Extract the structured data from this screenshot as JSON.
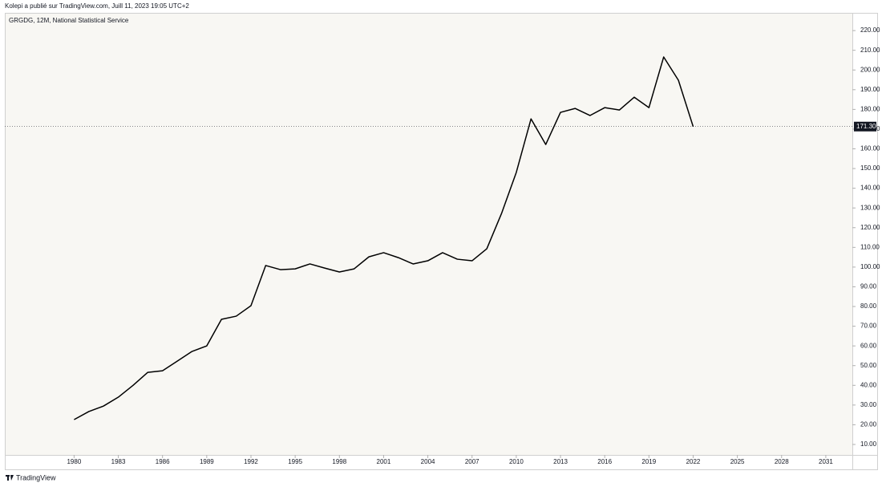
{
  "header": "Kolepi a publié sur TradingView.com, Juill 11, 2023 19:05 UTC+2",
  "footer": "TradingView",
  "chart_data": {
    "type": "line",
    "series": [
      {
        "name": "GRGDG, 12M, National Statistical Service",
        "color": "#000000",
        "values": [
          22.6,
          26.7,
          29.5,
          34,
          40,
          46.6,
          47.4,
          52.3,
          57.2,
          60,
          73.5,
          75.1,
          80.4,
          100.8,
          98.7,
          99.1,
          101.6,
          99.5,
          97.5,
          99.1,
          105.2,
          107.3,
          104.8,
          101.6,
          103.2,
          107.3,
          104,
          103.2,
          109.3,
          127.2,
          148,
          175.2,
          162.2,
          178.5,
          180.5,
          176.9,
          180.9,
          179.7,
          186.2,
          180.9,
          206.6,
          194.8,
          171.3
        ]
      }
    ],
    "x": [
      1980,
      1981,
      1982,
      1983,
      1984,
      1985,
      1986,
      1987,
      1988,
      1989,
      1990,
      1991,
      1992,
      1993,
      1994,
      1995,
      1996,
      1997,
      1998,
      1999,
      2000,
      2001,
      2002,
      2003,
      2004,
      2005,
      2006,
      2007,
      2008,
      2009,
      2010,
      2011,
      2012,
      2013,
      2014,
      2015,
      2016,
      2017,
      2018,
      2019,
      2020,
      2021,
      2022
    ],
    "xlim": [
      1975.3,
      2032.8
    ],
    "xticks": [
      1980,
      1983,
      1986,
      1989,
      1992,
      1995,
      1998,
      2001,
      2004,
      2007,
      2010,
      2013,
      2016,
      2019,
      2022,
      2025,
      2028,
      2031
    ],
    "ylim": [
      4.7,
      229
    ],
    "yticks": [
      {
        "value": 10,
        "label": "10.00"
      },
      {
        "value": 20,
        "label": "20.00"
      },
      {
        "value": 30,
        "label": "30.00"
      },
      {
        "value": 40,
        "label": "40.00"
      },
      {
        "value": 50,
        "label": "50.00"
      },
      {
        "value": 60,
        "label": "60.00"
      },
      {
        "value": 70,
        "label": "70.00"
      },
      {
        "value": 80,
        "label": "80.00"
      },
      {
        "value": 90,
        "label": "90.00"
      },
      {
        "value": 100,
        "label": "100.00"
      },
      {
        "value": 110,
        "label": "110.00"
      },
      {
        "value": 120,
        "label": "120.00"
      },
      {
        "value": 130,
        "label": "130.00"
      },
      {
        "value": 140,
        "label": "140.00"
      },
      {
        "value": 150,
        "label": "150.00"
      },
      {
        "value": 160,
        "label": "160.00"
      },
      {
        "value": 170,
        "label": "170.00"
      },
      {
        "value": 180,
        "label": "180.00"
      },
      {
        "value": 190,
        "label": "190.00"
      },
      {
        "value": 200,
        "label": "200.00"
      },
      {
        "value": 210,
        "label": "210.00"
      },
      {
        "value": 220,
        "label": "220.00"
      }
    ],
    "price_line": {
      "value": 171.3,
      "label": "171.30"
    }
  }
}
